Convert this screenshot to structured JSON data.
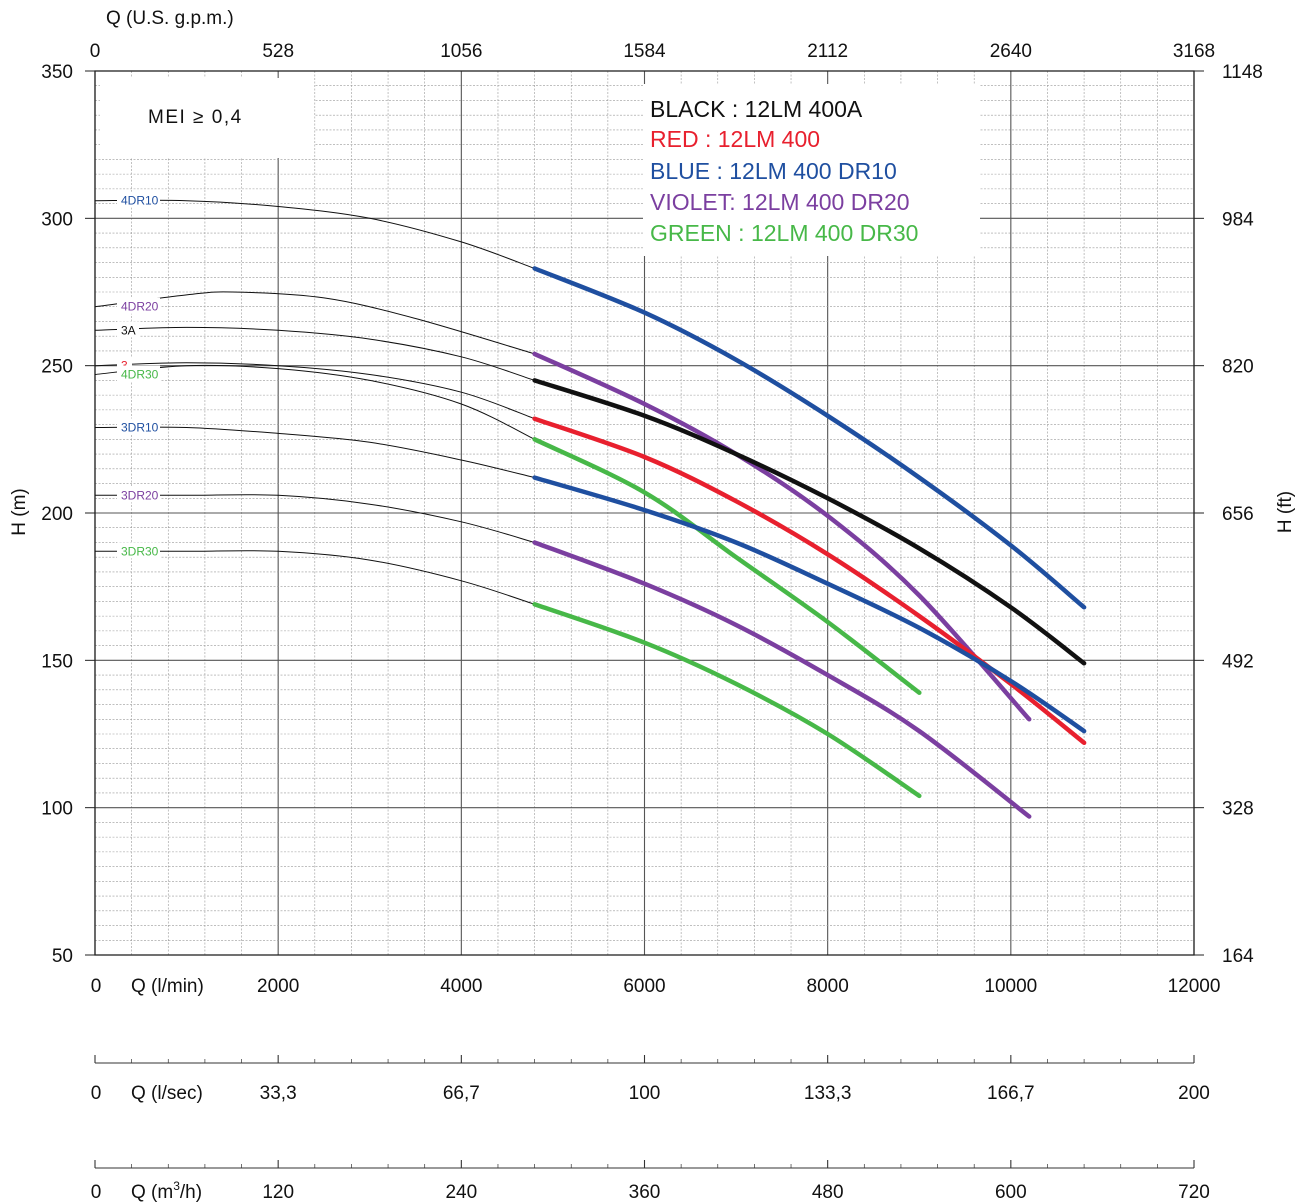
{
  "chart_data": {
    "type": "line",
    "note_text": "MEI ≥ 0,4",
    "top_axis": {
      "label": "Q (U.S. g.p.m.)",
      "ticks": [
        "0",
        "528",
        "1056",
        "1584",
        "2112",
        "2640",
        "3168"
      ]
    },
    "left_axis": {
      "label": "H (m)",
      "ticks": [
        "350",
        "300",
        "250",
        "200",
        "150",
        "100",
        "50"
      ],
      "range": [
        50,
        350
      ]
    },
    "right_axis": {
      "label": "H (ft)",
      "ticks": [
        "1148",
        "984",
        "820",
        "656",
        "492",
        "328",
        "164"
      ]
    },
    "bottom_axis": {
      "label": "Q (l/min)",
      "zero": "0",
      "ticks": [
        "2000",
        "4000",
        "6000",
        "8000",
        "10000",
        "12000"
      ],
      "range": [
        0,
        12000
      ]
    },
    "lsec_axis": {
      "label": "Q (l/sec)",
      "zero": "0",
      "ticks": [
        "33,3",
        "66,7",
        "100",
        "133,3",
        "166,7",
        "200"
      ]
    },
    "m3h_axis": {
      "label_pre": "Q (m",
      "label_sup": "3",
      "label_post": "/h)",
      "zero": "0",
      "ticks": [
        "120",
        "240",
        "360",
        "480",
        "600",
        "720"
      ]
    },
    "legend": [
      {
        "key": "BLACK :",
        "model": " 12LM 400A",
        "color": "#111111"
      },
      {
        "key": "RED :",
        "model": " 12LM 400",
        "color": "#e8202e"
      },
      {
        "key": "BLUE :",
        "model": "  12LM 400 DR10",
        "color": "#1f4fa0"
      },
      {
        "key": "VIOLET:",
        "model": " 12LM 400 DR20",
        "color": "#7b3fa0"
      },
      {
        "key": "GREEN :",
        "model": "  12LM 400 DR30",
        "color": "#47b848"
      }
    ],
    "series": [
      {
        "name": "4DR10",
        "color": "#1f4fa0",
        "x": [
          0,
          1000,
          2000,
          3000,
          4000,
          4800
        ],
        "y": [
          306,
          306,
          304,
          300,
          292,
          283
        ],
        "op": {
          "x": [
            4800,
            6000,
            7000,
            8000,
            9000,
            10000,
            10800
          ],
          "y": [
            283,
            268,
            252,
            233,
            212,
            189,
            168
          ]
        }
      },
      {
        "name": "4DR20",
        "color": "#7b3fa0",
        "x": [
          0,
          1000,
          1500,
          2500,
          3500,
          4800
        ],
        "y": [
          270,
          274,
          275,
          273,
          266,
          254
        ],
        "op": {
          "x": [
            4800,
            6000,
            7000,
            8000,
            9000,
            10200
          ],
          "y": [
            254,
            237,
            220,
            199,
            172,
            130
          ]
        }
      },
      {
        "name": "3A",
        "color": "#111111",
        "x": [
          0,
          1000,
          2000,
          3000,
          4000,
          4800
        ],
        "y": [
          262,
          263,
          262,
          259,
          253,
          245
        ],
        "op": {
          "x": [
            4800,
            6000,
            7000,
            8000,
            9000,
            10000,
            10800
          ],
          "y": [
            245,
            233,
            220,
            205,
            188,
            168,
            149
          ]
        }
      },
      {
        "name": "3",
        "color": "#e8202e",
        "x": [
          0,
          1000,
          2000,
          3000,
          4000,
          4800
        ],
        "y": [
          250,
          251,
          250,
          247,
          241,
          232
        ],
        "op": {
          "x": [
            4800,
            6000,
            7000,
            8000,
            9000,
            10000,
            10800
          ],
          "y": [
            232,
            219,
            204,
            186,
            165,
            142,
            122
          ]
        }
      },
      {
        "name": "4DR30",
        "color": "#47b848",
        "x": [
          0,
          1000,
          2000,
          3000,
          4000,
          4800
        ],
        "y": [
          247,
          250,
          249,
          245,
          237,
          225
        ],
        "op": {
          "x": [
            4800,
            6000,
            7000,
            8000,
            9000
          ],
          "y": [
            225,
            207,
            185,
            163,
            139
          ]
        }
      },
      {
        "name": "3DR10",
        "color": "#1f4fa0",
        "x": [
          0,
          1000,
          2000,
          3000,
          4000,
          4800
        ],
        "y": [
          229,
          229,
          227,
          224,
          218,
          212
        ],
        "op": {
          "x": [
            4800,
            6000,
            7000,
            8000,
            9000,
            10000,
            10800
          ],
          "y": [
            212,
            201,
            190,
            176,
            161,
            143,
            126
          ]
        }
      },
      {
        "name": "3DR20",
        "color": "#7b3fa0",
        "x": [
          0,
          1000,
          2000,
          3000,
          4000,
          4800
        ],
        "y": [
          206,
          206,
          206,
          203,
          197,
          190
        ],
        "op": {
          "x": [
            4800,
            6000,
            7000,
            8000,
            9000,
            10200
          ],
          "y": [
            190,
            176,
            162,
            145,
            126,
            97
          ]
        }
      },
      {
        "name": "3DR30",
        "color": "#47b848",
        "x": [
          0,
          1000,
          2000,
          3000,
          4000,
          4800
        ],
        "y": [
          187,
          187,
          187,
          184,
          177,
          169
        ],
        "op": {
          "x": [
            4800,
            6000,
            7000,
            8000,
            9000
          ],
          "y": [
            169,
            156,
            142,
            125,
            104
          ]
        }
      }
    ]
  }
}
